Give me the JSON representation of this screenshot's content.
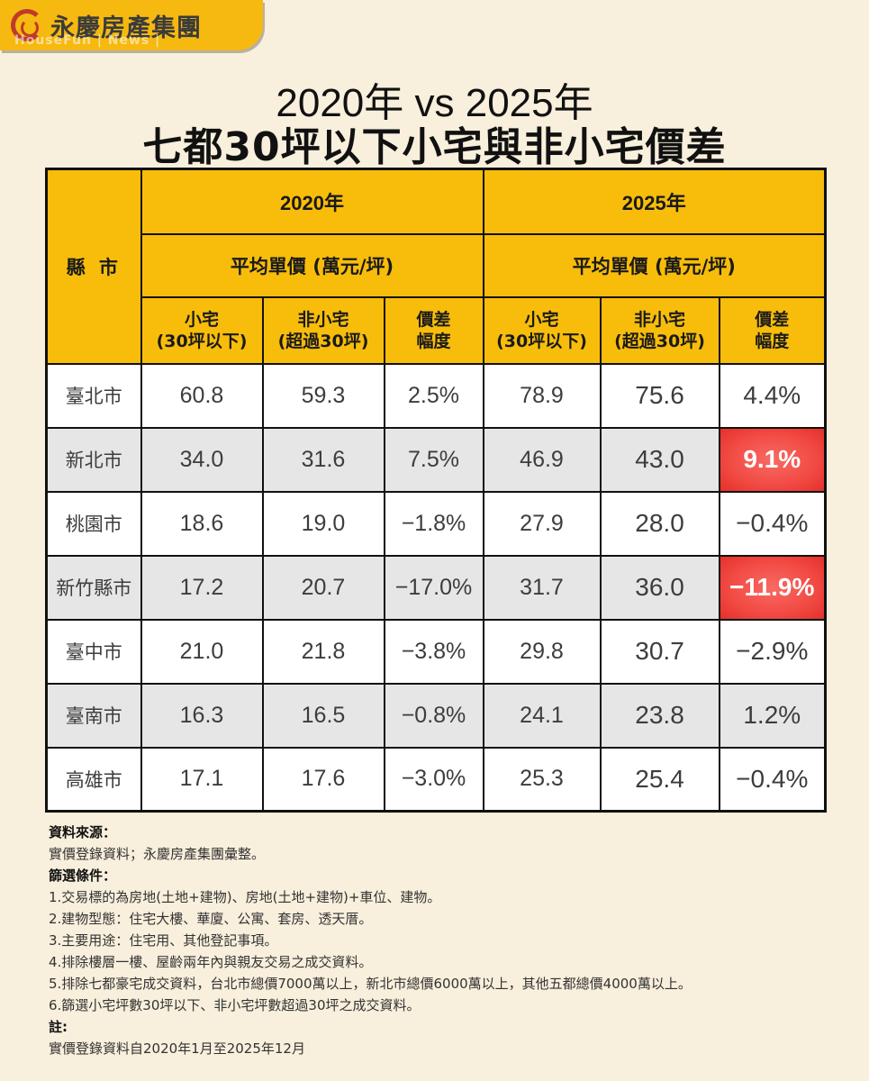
{
  "brand": {
    "name": "永慶房產集團",
    "sub": "HouseFun | News |",
    "logo_icon": "swirl-logo-icon",
    "colors": {
      "tab": "#f6b90f",
      "logo": "#c0392b"
    }
  },
  "title": {
    "line1": "2020年 vs 2025年",
    "line2": "七都30坪以下小宅與非小宅價差"
  },
  "table": {
    "city_header": "縣 市",
    "groups": [
      {
        "year": "2020年",
        "unit": "平均單價 (萬元/坪)"
      },
      {
        "year": "2025年",
        "unit": "平均單價 (萬元/坪)"
      }
    ],
    "sub_headers": [
      {
        "l1": "小宅",
        "l2": "(30坪以下)"
      },
      {
        "l1": "非小宅",
        "l2": "(超過30坪)"
      },
      {
        "l1": "價差",
        "l2": "幅度"
      }
    ],
    "rows": [
      {
        "city": "臺北市",
        "y2020": [
          "60.8",
          "59.3",
          "2.5%"
        ],
        "y2025": [
          "78.9",
          "75.6",
          "4.4%"
        ],
        "highlight": false
      },
      {
        "city": "新北市",
        "y2020": [
          "34.0",
          "31.6",
          "7.5%"
        ],
        "y2025": [
          "46.9",
          "43.0",
          "9.1%"
        ],
        "highlight": true
      },
      {
        "city": "桃園市",
        "y2020": [
          "18.6",
          "19.0",
          "−1.8%"
        ],
        "y2025": [
          "27.9",
          "28.0",
          "−0.4%"
        ],
        "highlight": false
      },
      {
        "city": "新竹縣市",
        "y2020": [
          "17.2",
          "20.7",
          "−17.0%"
        ],
        "y2025": [
          "31.7",
          "36.0",
          "−11.9%"
        ],
        "highlight": true
      },
      {
        "city": "臺中市",
        "y2020": [
          "21.0",
          "21.8",
          "−3.8%"
        ],
        "y2025": [
          "29.8",
          "30.7",
          "−2.9%"
        ],
        "highlight": false
      },
      {
        "city": "臺南市",
        "y2020": [
          "16.3",
          "16.5",
          "−0.8%"
        ],
        "y2025": [
          "24.1",
          "23.8",
          "1.2%"
        ],
        "highlight": false
      },
      {
        "city": "高雄市",
        "y2020": [
          "17.1",
          "17.6",
          "−3.0%"
        ],
        "y2025": [
          "25.3",
          "25.4",
          "−0.4%"
        ],
        "highlight": false
      }
    ],
    "colors": {
      "header": "#f7bd0a",
      "shade": "#e6e6e6",
      "highlight": "#f14a43"
    }
  },
  "notes": {
    "source_label": "資料來源：",
    "source_text": "實價登錄資料；永慶房產集團彙整。",
    "filter_label": "篩選條件：",
    "filters": [
      "1.交易標的為房地(土地+建物)、房地(土地+建物)+車位、建物。",
      "2.建物型態：住宅大樓、華廈、公寓、套房、透天厝。",
      "3.主要用途：住宅用、其他登記事項。",
      "4.排除樓層一樓、屋齡兩年內與親友交易之成交資料。",
      "5.排除七都豪宅成交資料，台北市總價7000萬以上，新北市總價6000萬以上，其他五都總價4000萬以上。",
      "6.篩選小宅坪數30坪以下、非小宅坪數超過30坪之成交資料。"
    ],
    "note_label": "註:",
    "note_text": "實價登錄資料自2020年1月至2025年12月"
  },
  "chart_data": {
    "type": "table",
    "title": "2020年 vs 2025年 七都30坪以下小宅與非小宅價差",
    "unit": "萬元/坪",
    "columns": [
      "縣市",
      "2020 小宅(30坪以下)",
      "2020 非小宅(超過30坪)",
      "2020 價差幅度",
      "2025 小宅(30坪以下)",
      "2025 非小宅(超過30坪)",
      "2025 價差幅度"
    ],
    "rows": [
      [
        "臺北市",
        60.8,
        59.3,
        "2.5%",
        78.9,
        75.6,
        "4.4%"
      ],
      [
        "新北市",
        34.0,
        31.6,
        "7.5%",
        46.9,
        43.0,
        "9.1%"
      ],
      [
        "桃園市",
        18.6,
        19.0,
        "-1.8%",
        27.9,
        28.0,
        "-0.4%"
      ],
      [
        "新竹縣市",
        17.2,
        20.7,
        "-17.0%",
        31.7,
        36.0,
        "-11.9%"
      ],
      [
        "臺中市",
        21.0,
        21.8,
        "-3.8%",
        29.8,
        30.7,
        "-2.9%"
      ],
      [
        "臺南市",
        16.3,
        16.5,
        "-0.8%",
        24.1,
        23.8,
        "1.2%"
      ],
      [
        "高雄市",
        17.1,
        17.6,
        "-3.0%",
        25.3,
        25.4,
        "-0.4%"
      ]
    ],
    "highlighted_cells": [
      [
        "新北市",
        "2025 價差幅度"
      ],
      [
        "新竹縣市",
        "2025 價差幅度"
      ]
    ]
  }
}
